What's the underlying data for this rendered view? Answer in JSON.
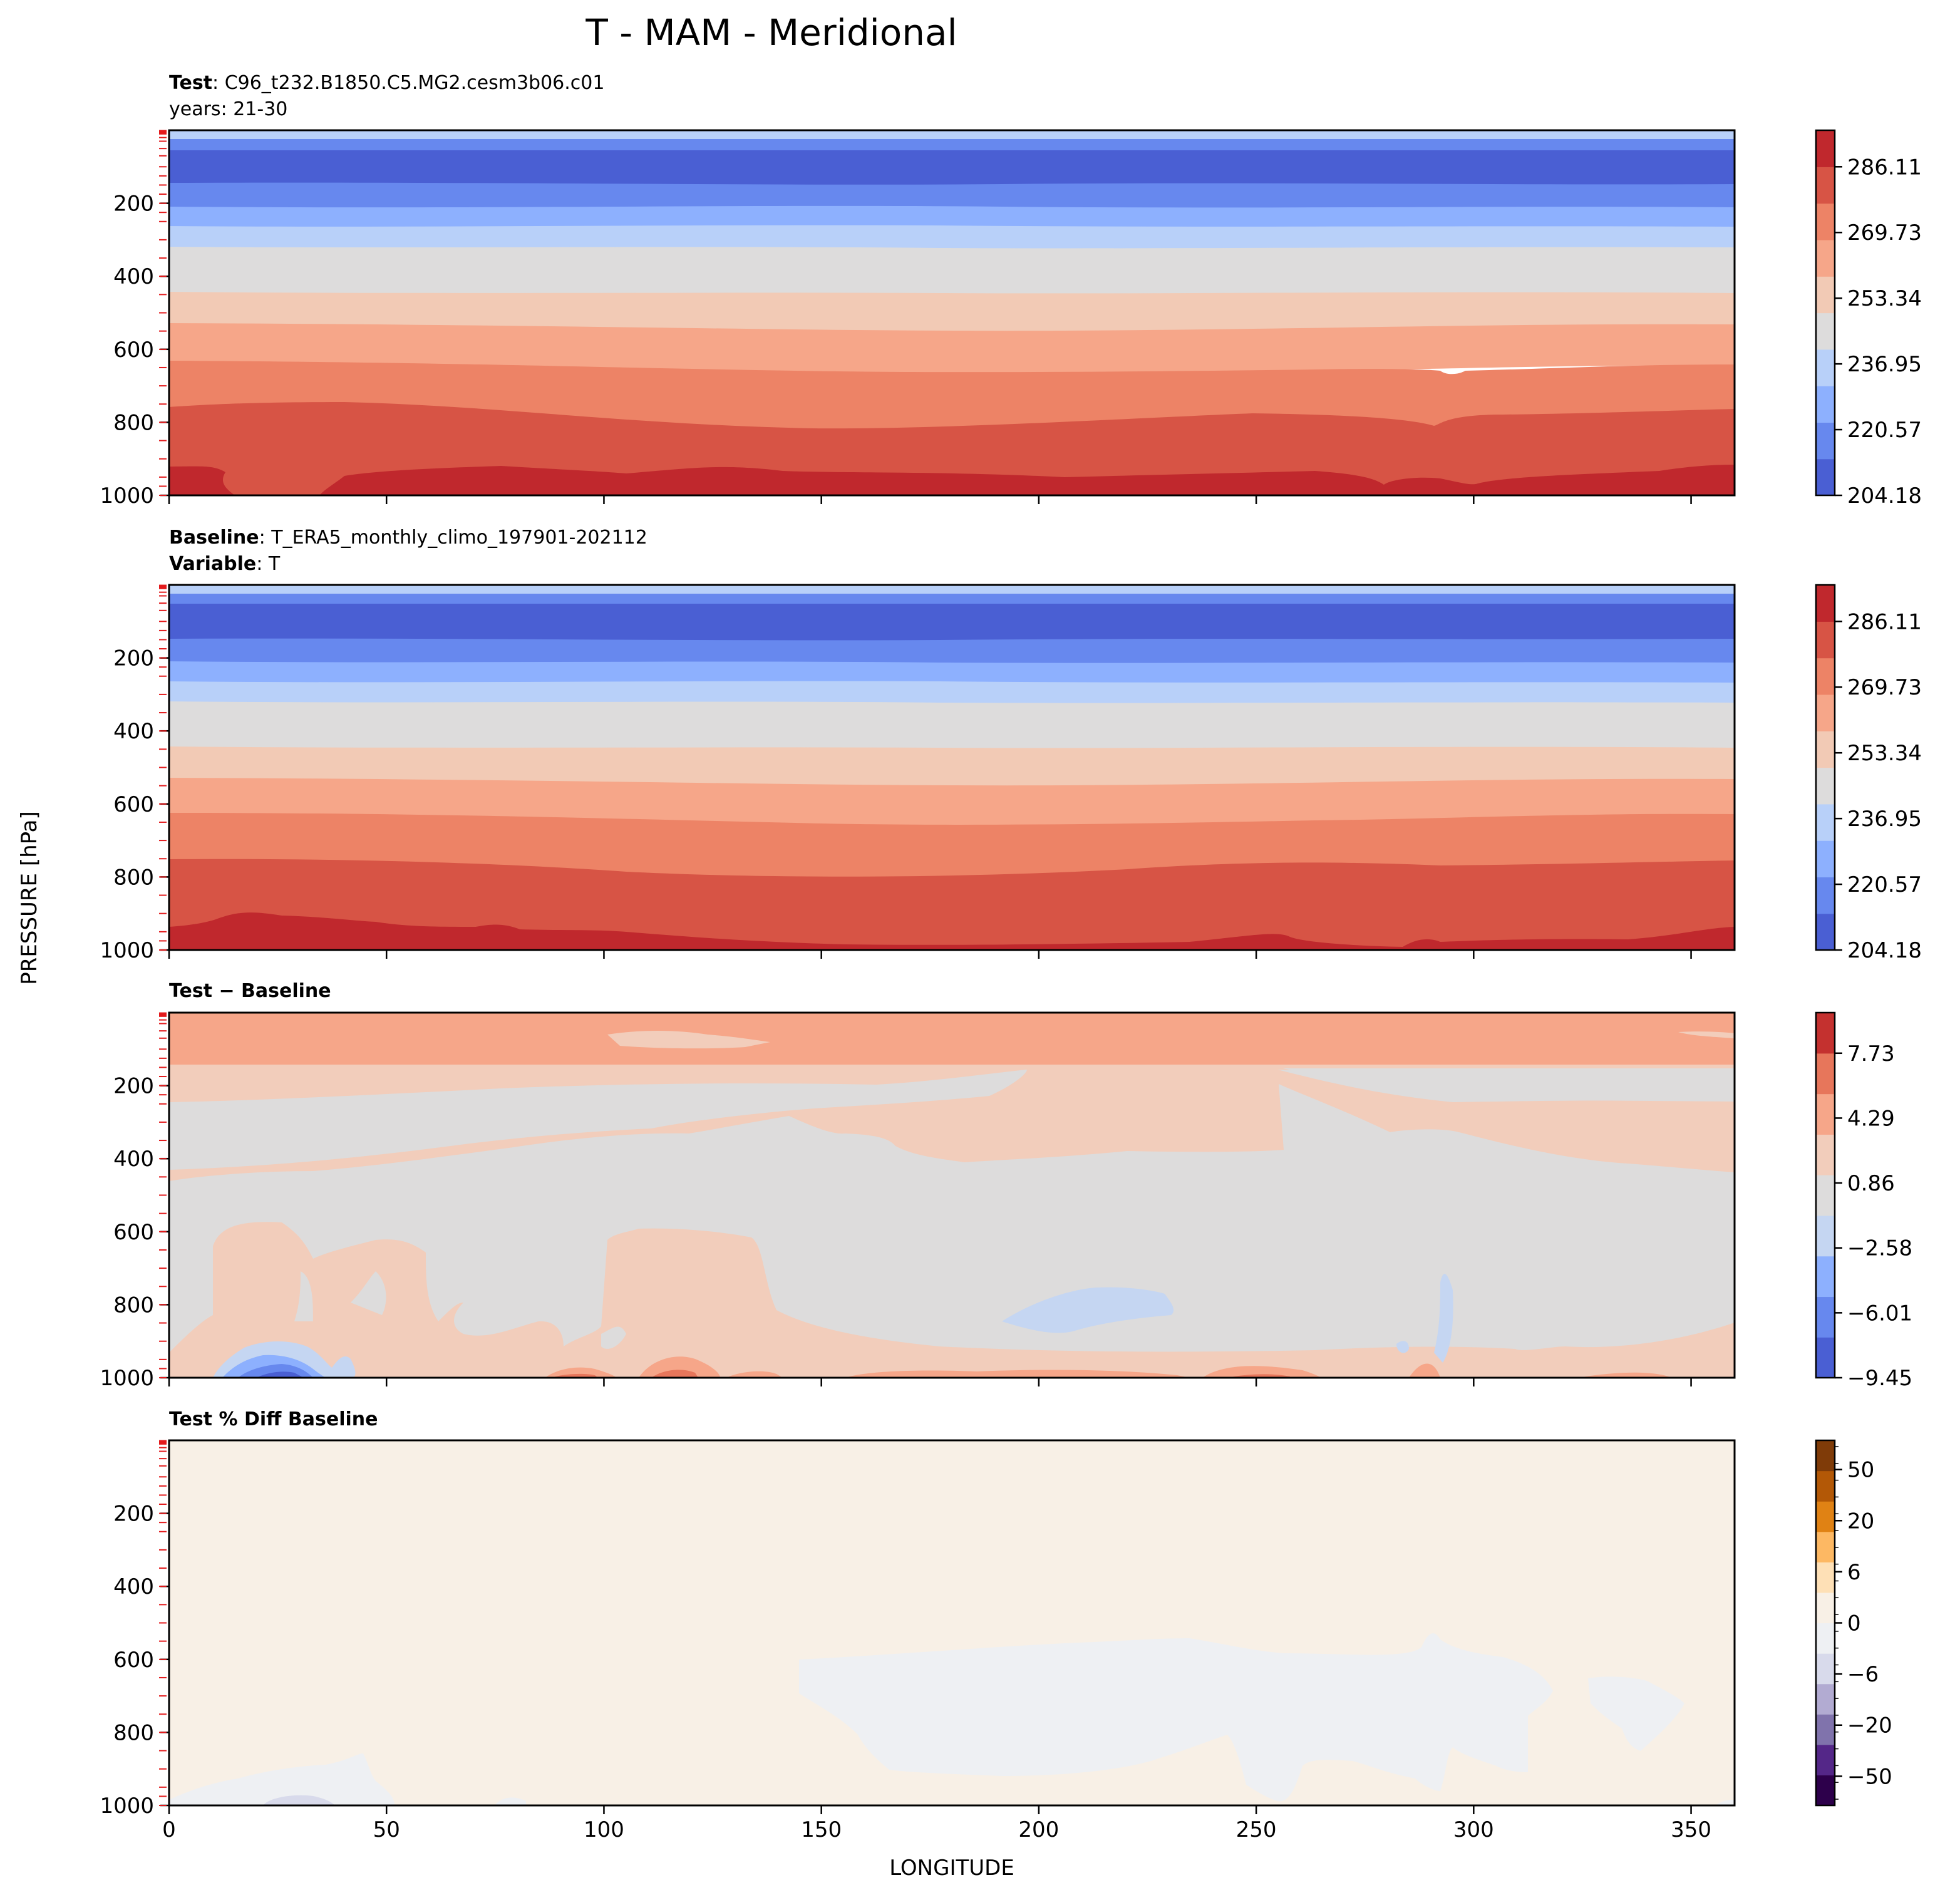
{
  "figure": {
    "title": "T - MAM - Meridional"
  },
  "shared": {
    "ylabel": "PRESSURE [hPa]",
    "xlabel": "LONGITUDE",
    "yticks": [
      "200",
      "400",
      "600",
      "800",
      "1000"
    ],
    "xticks": [
      "0",
      "50",
      "100",
      "150",
      "200",
      "250",
      "300",
      "350"
    ]
  },
  "colors": {
    "seq": [
      "#4a5fd3",
      "#6788ee",
      "#8db0fe",
      "#b8d0f9",
      "#dddcdc",
      "#f2cab5",
      "#f6a689",
      "#ed8366",
      "#d75445",
      "#c0282d"
    ],
    "diff": [
      "#4a5fd3",
      "#6788ee",
      "#8db0fe",
      "#c5d6f2",
      "#dddcdc",
      "#f2cdbb",
      "#f6a689",
      "#e7765b",
      "#c4312f"
    ],
    "pct": [
      "#2d004b",
      "#542788",
      "#8073ac",
      "#b2abd2",
      "#d8daeb",
      "#eef0f3",
      "#f8f0e6",
      "#fee0b6",
      "#fdb863",
      "#e08214",
      "#b35806",
      "#7f3b08"
    ],
    "level_marker": "#e31a1c"
  },
  "panels": [
    {
      "id": "test",
      "title_lines": [
        {
          "bold": "Test",
          "sep": ": ",
          "text": "C96_t232.B1850.C5.MG2.cesm3b06.c01"
        },
        {
          "bold": "",
          "sep": "",
          "text": "years: 21-30"
        }
      ],
      "colorbar": {
        "labels": [
          "286.11",
          "269.73",
          "253.34",
          "236.95",
          "220.57",
          "204.18"
        ]
      }
    },
    {
      "id": "baseline",
      "title_lines": [
        {
          "bold": "Baseline",
          "sep": ": ",
          "text": "T_ERA5_monthly_climo_197901-202112"
        },
        {
          "bold": "Variable",
          "sep": ": ",
          "text": "T"
        }
      ],
      "colorbar": {
        "labels": [
          "286.11",
          "269.73",
          "253.34",
          "236.95",
          "220.57",
          "204.18"
        ]
      }
    },
    {
      "id": "diff",
      "title_lines": [
        {
          "bold": "Test − Baseline",
          "sep": "",
          "text": ""
        }
      ],
      "colorbar": {
        "labels": [
          "7.73",
          "4.29",
          "0.86",
          "−2.58",
          "−6.01",
          "−9.45"
        ]
      }
    },
    {
      "id": "pctdiff",
      "title_lines": [
        {
          "bold": "Test % Diff Baseline",
          "sep": "",
          "text": ""
        }
      ],
      "colorbar": {
        "labels": [
          "50",
          "20",
          "6",
          "0",
          "−6",
          "−20",
          "−50"
        ]
      }
    }
  ],
  "chart_data": [
    {
      "type": "heatmap",
      "title": "Test: C96_t232.B1850.C5.MG2.cesm3b06.c01 years: 21-30",
      "xlabel": "LONGITUDE",
      "ylabel": "PRESSURE [hPa]",
      "xlim": [
        0,
        360
      ],
      "ylim": [
        1000,
        0
      ],
      "yscale": "linear",
      "levels": [
        204.18,
        212.37,
        220.57,
        228.76,
        236.95,
        245.15,
        253.34,
        261.54,
        269.73,
        277.92,
        286.11,
        294.31
      ],
      "field_description_by_band": [
        {
          "pressure_range_hPa": [
            0,
            60
          ],
          "value_range": [
            204.18,
            220.57
          ]
        },
        {
          "pressure_range_hPa": [
            60,
            150
          ],
          "value_range": [
            204.18,
            212.37
          ]
        },
        {
          "pressure_range_hPa": [
            150,
            380
          ],
          "value_range": [
            212.37,
            245.15
          ]
        },
        {
          "pressure_range_hPa": [
            380,
            650
          ],
          "value_range": [
            245.15,
            269.73
          ]
        },
        {
          "pressure_range_hPa": [
            650,
            940
          ],
          "value_range": [
            269.73,
            286.11
          ]
        },
        {
          "pressure_range_hPa": [
            940,
            1000
          ],
          "value_range": [
            286.11,
            294.31
          ]
        }
      ]
    },
    {
      "type": "heatmap",
      "title": "Baseline: T_ERA5_monthly_climo_197901-202112 Variable: T",
      "xlabel": "LONGITUDE",
      "ylabel": "PRESSURE [hPa]",
      "xlim": [
        0,
        360
      ],
      "ylim": [
        1000,
        0
      ],
      "levels": [
        204.18,
        212.37,
        220.57,
        228.76,
        236.95,
        245.15,
        253.34,
        261.54,
        269.73,
        277.92,
        286.11,
        294.31
      ]
    },
    {
      "type": "heatmap",
      "title": "Test − Baseline",
      "xlabel": "LONGITUDE",
      "ylabel": "PRESSURE [hPa]",
      "xlim": [
        0,
        360
      ],
      "ylim": [
        1000,
        0
      ],
      "levels": [
        -9.45,
        -7.73,
        -6.01,
        -4.29,
        -2.58,
        -0.86,
        0.86,
        2.58,
        4.29,
        6.01,
        7.73,
        9.45
      ],
      "notes_positive_band_top_hPa": [
        0,
        150
      ],
      "notes_negative_patch": {
        "lon_range": [
          190,
          230
        ],
        "pressure_range_hPa": [
          760,
          900
        ]
      }
    },
    {
      "type": "heatmap",
      "title": "Test % Diff Baseline",
      "xlabel": "LONGITUDE",
      "ylabel": "PRESSURE [hPa]",
      "xlim": [
        0,
        360
      ],
      "ylim": [
        1000,
        0
      ],
      "levels": [
        -100,
        -75,
        -50,
        -40,
        -30,
        -20,
        -15,
        -10,
        -6,
        -3,
        -1,
        0,
        1,
        3,
        6,
        10,
        15,
        20,
        30,
        40,
        50,
        75,
        100
      ]
    }
  ]
}
